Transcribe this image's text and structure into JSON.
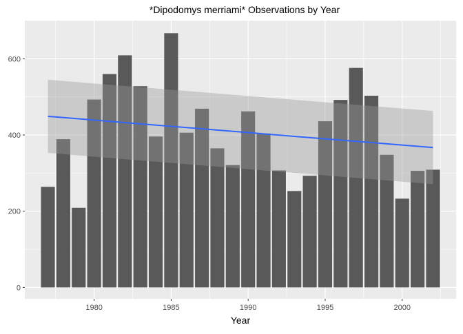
{
  "chart_data": {
    "type": "bar",
    "title": "*Dipodomys merriami* Observations by Year",
    "xlabel": "Year",
    "ylabel": "",
    "x": [
      1977,
      1978,
      1979,
      1980,
      1981,
      1982,
      1983,
      1984,
      1985,
      1986,
      1987,
      1988,
      1989,
      1990,
      1991,
      1992,
      1993,
      1994,
      1995,
      1996,
      1997,
      1998,
      1999,
      2000,
      2001,
      2002
    ],
    "values": [
      264,
      389,
      209,
      493,
      560,
      609,
      528,
      396,
      667,
      406,
      469,
      365,
      321,
      462,
      404,
      307,
      253,
      293,
      436,
      492,
      576,
      503,
      348,
      233,
      306,
      309
    ],
    "xlim": [
      1975.5,
      2003.5
    ],
    "ylim": [
      -30,
      700
    ],
    "x_ticks": [
      1980,
      1985,
      1990,
      1995,
      2000
    ],
    "y_ticks": [
      0,
      200,
      400,
      600
    ],
    "trend": {
      "method": "linear fit with confidence band",
      "x_range": [
        1977,
        2002
      ],
      "y_start": 449,
      "y_end": 367,
      "band_lower_start": 353,
      "band_lower_end": 271,
      "band_upper_start": 545,
      "band_upper_end": 463
    },
    "grid": true,
    "colors": {
      "bar": "#595959",
      "panel": "#ebebeb",
      "grid": "#ffffff",
      "trend_line": "#3366ff",
      "band": "#999999"
    }
  }
}
